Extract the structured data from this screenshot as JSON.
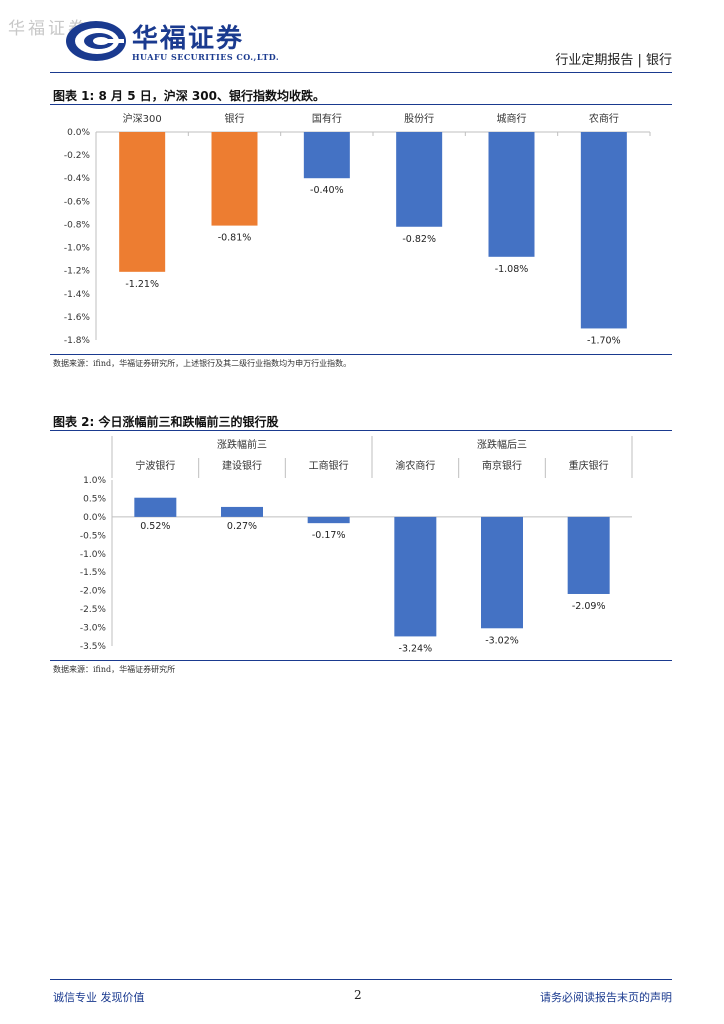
{
  "header": {
    "watermark": "华福证券",
    "logo_cn": "华福证券",
    "logo_en": "HUAFU SECURITIES CO.,LTD.",
    "report_type": "行业定期报告 | 银行"
  },
  "figure1": {
    "title": "图表 1:  8 月 5 日，沪深 300、银行指数均收跌。",
    "source": "数据来源：ifind，华福证券研究所，上述银行及其二级行业指数均为申万行业指数。"
  },
  "figure2": {
    "title": "图表 2:  今日涨幅前三和跌幅前三的银行股",
    "source": "数据来源：ifind，华福证券研究所"
  },
  "footer": {
    "left": "诚信专业  发现价值",
    "page": "2",
    "right": "请务必阅读报告末页的声明"
  },
  "colors": {
    "orange": "#ED7D31",
    "blue": "#4472C4",
    "brand": "#1A3A8F"
  },
  "chart_data": [
    {
      "type": "bar",
      "categories": [
        "沪深300",
        "银行",
        "国有行",
        "股份行",
        "城商行",
        "农商行"
      ],
      "values": [
        -1.21,
        -0.81,
        -0.4,
        -0.82,
        -1.08,
        -1.7
      ],
      "data_labels": [
        "-1.21%",
        "-0.81%",
        "-0.40%",
        "-0.82%",
        "-1.08%",
        "-1.70%"
      ],
      "bar_colors": [
        "#ED7D31",
        "#ED7D31",
        "#4472C4",
        "#4472C4",
        "#4472C4",
        "#4472C4"
      ],
      "ylim": [
        -1.8,
        0.0
      ],
      "yticks": [
        0.0,
        -0.2,
        -0.4,
        -0.6,
        -0.8,
        -1.0,
        -1.2,
        -1.4,
        -1.6,
        -1.8
      ],
      "ytick_labels": [
        "0.0%",
        "-0.2%",
        "-0.4%",
        "-0.6%",
        "-0.8%",
        "-1.0%",
        "-1.2%",
        "-1.4%",
        "-1.6%",
        "-1.8%"
      ],
      "xlabel": "",
      "ylabel": "",
      "grid": false
    },
    {
      "type": "bar",
      "groups": [
        "涨跌幅前三",
        "涨跌幅后三"
      ],
      "categories": [
        "宁波银行",
        "建设银行",
        "工商银行",
        "渝农商行",
        "南京银行",
        "重庆银行"
      ],
      "values": [
        0.52,
        0.27,
        -0.17,
        -3.24,
        -3.02,
        -2.09
      ],
      "data_labels": [
        "0.52%",
        "0.27%",
        "-0.17%",
        "-3.24%",
        "-3.02%",
        "-2.09%"
      ],
      "bar_colors": [
        "#4472C4",
        "#4472C4",
        "#4472C4",
        "#4472C4",
        "#4472C4",
        "#4472C4"
      ],
      "ylim": [
        -3.5,
        1.0
      ],
      "yticks": [
        1.0,
        0.5,
        0.0,
        -0.5,
        -1.0,
        -1.5,
        -2.0,
        -2.5,
        -3.0,
        -3.5
      ],
      "ytick_labels": [
        "1.0%",
        "0.5%",
        "0.0%",
        "-0.5%",
        "-1.0%",
        "-1.5%",
        "-2.0%",
        "-2.5%",
        "-3.0%",
        "-3.5%"
      ],
      "xlabel": "",
      "ylabel": "",
      "grid": false
    }
  ]
}
